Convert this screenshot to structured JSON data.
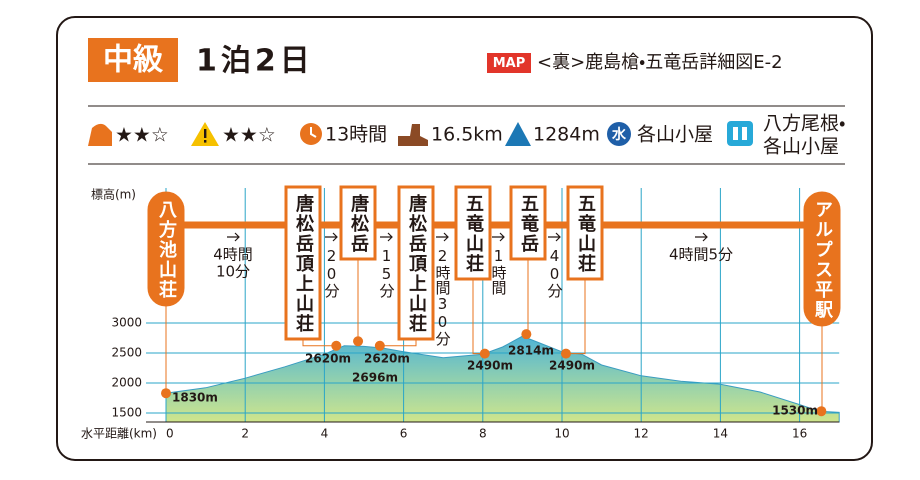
{
  "header": {
    "level": "中級",
    "duration": "1泊2日",
    "map_badge": "MAP",
    "map_ref": "<裏>鹿島槍・五竜岳詳細図E-2"
  },
  "stats": {
    "difficulty": "★★☆",
    "danger": "★★☆",
    "time": "13時間",
    "distance": "16.5km",
    "elevation_gain": "1284m",
    "water_icon": "水",
    "water": "各山小屋",
    "toilet": [
      "八方尾根・",
      "各山小屋"
    ]
  },
  "chart_data": {
    "type": "area",
    "y_label": "標高(m)",
    "x_label": "水平距離(km)",
    "xlim": [
      0,
      17
    ],
    "ylim": [
      1350,
      5250
    ],
    "xticks": [
      0,
      2,
      4,
      6,
      8,
      10,
      12,
      14,
      16
    ],
    "yticks": [
      1500,
      2000,
      2500,
      3000
    ],
    "x": [
      0,
      1,
      2,
      3,
      4,
      4.5,
      5,
      5.5,
      6,
      7,
      8,
      8.5,
      9,
      9.5,
      10,
      10.5,
      11,
      12,
      13,
      14,
      15,
      16,
      16.5,
      17
    ],
    "values": [
      1830,
      1920,
      2080,
      2270,
      2480,
      2620,
      2610,
      2580,
      2520,
      2420,
      2480,
      2600,
      2780,
      2650,
      2520,
      2480,
      2300,
      2120,
      2030,
      1980,
      1850,
      1640,
      1530,
      1510
    ],
    "waypoint_names": [
      "八方池山荘",
      "唐松岳頂上山荘",
      "唐松岳",
      "唐松岳頂上山荘",
      "五竜山荘",
      "五竜岳",
      "五竜山荘",
      "アルプス平駅"
    ],
    "waypoint_x": [
      0,
      4.3,
      4.85,
      5.4,
      8.05,
      9.1,
      10.1,
      16.55
    ],
    "waypoint_values": [
      1830,
      2620,
      2696,
      2620,
      2490,
      2814,
      2490,
      1530
    ],
    "waypoint_value_labels": [
      "1830m",
      "2620m",
      "2696m",
      "2620m",
      "2490m",
      "2814m",
      "2490m",
      "1530m"
    ],
    "segment_times": [
      [
        "4時間",
        "10分"
      ],
      [
        "20分"
      ],
      [
        "15分"
      ],
      [
        "2時間30分"
      ],
      [
        "1時間"
      ],
      [
        "40分"
      ],
      [
        "4時間5分"
      ]
    ]
  }
}
